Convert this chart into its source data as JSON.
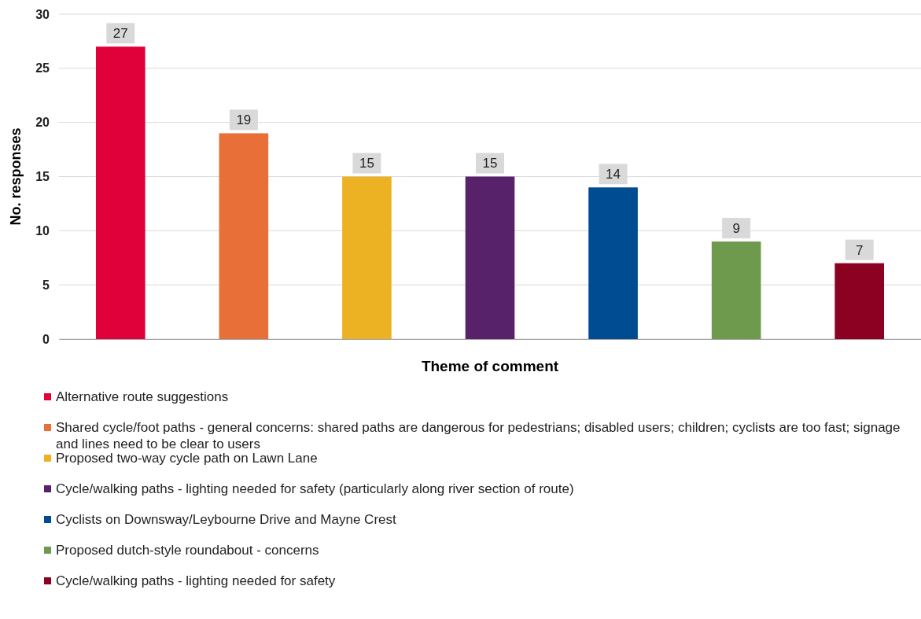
{
  "chart_data": {
    "type": "bar",
    "xlabel": "Theme of comment",
    "ylabel": "No. responses",
    "categories": [
      null,
      null,
      null,
      null,
      null,
      null,
      null
    ],
    "series": [
      {
        "name": "Alternative route suggestions",
        "color": "#e0003a",
        "values": [
          27,
          null,
          null,
          null,
          null,
          null,
          null
        ]
      },
      {
        "name": "Shared cycle/foot paths - general concerns: shared paths are dangerous for pedestrians; disabled users; children; cyclists are too fast; signage and lines need to be clear to users",
        "color": "#e87038",
        "values": [
          null,
          19,
          null,
          null,
          null,
          null,
          null
        ]
      },
      {
        "name": "Proposed two-way cycle path on Lawn Lane",
        "color": "#ecb223",
        "values": [
          null,
          null,
          15,
          null,
          null,
          null,
          null
        ]
      },
      {
        "name": "Cycle/walking paths - lighting needed for safety (particularly along river section of route)",
        "color": "#58226a",
        "values": [
          null,
          null,
          null,
          15,
          null,
          null,
          null
        ]
      },
      {
        "name": "Cyclists on Downsway/Leybourne Drive and Mayne Crest",
        "color": "#004c93",
        "values": [
          null,
          null,
          null,
          null,
          14,
          null,
          null
        ]
      },
      {
        "name": "Proposed dutch-style roundabout - concerns",
        "color": "#6e9a4d",
        "values": [
          null,
          null,
          null,
          null,
          null,
          9,
          null
        ]
      },
      {
        "name": "Cycle/walking paths - lighting needed for safety",
        "color": "#8c0022",
        "values": [
          null,
          null,
          null,
          null,
          null,
          null,
          7
        ]
      }
    ],
    "ylim": [
      0,
      30
    ],
    "yticks": [
      0,
      5,
      10,
      15,
      20,
      25,
      30
    ],
    "grid": "y",
    "data_labels": true,
    "legend": "bottom",
    "tick_labels": "y"
  }
}
